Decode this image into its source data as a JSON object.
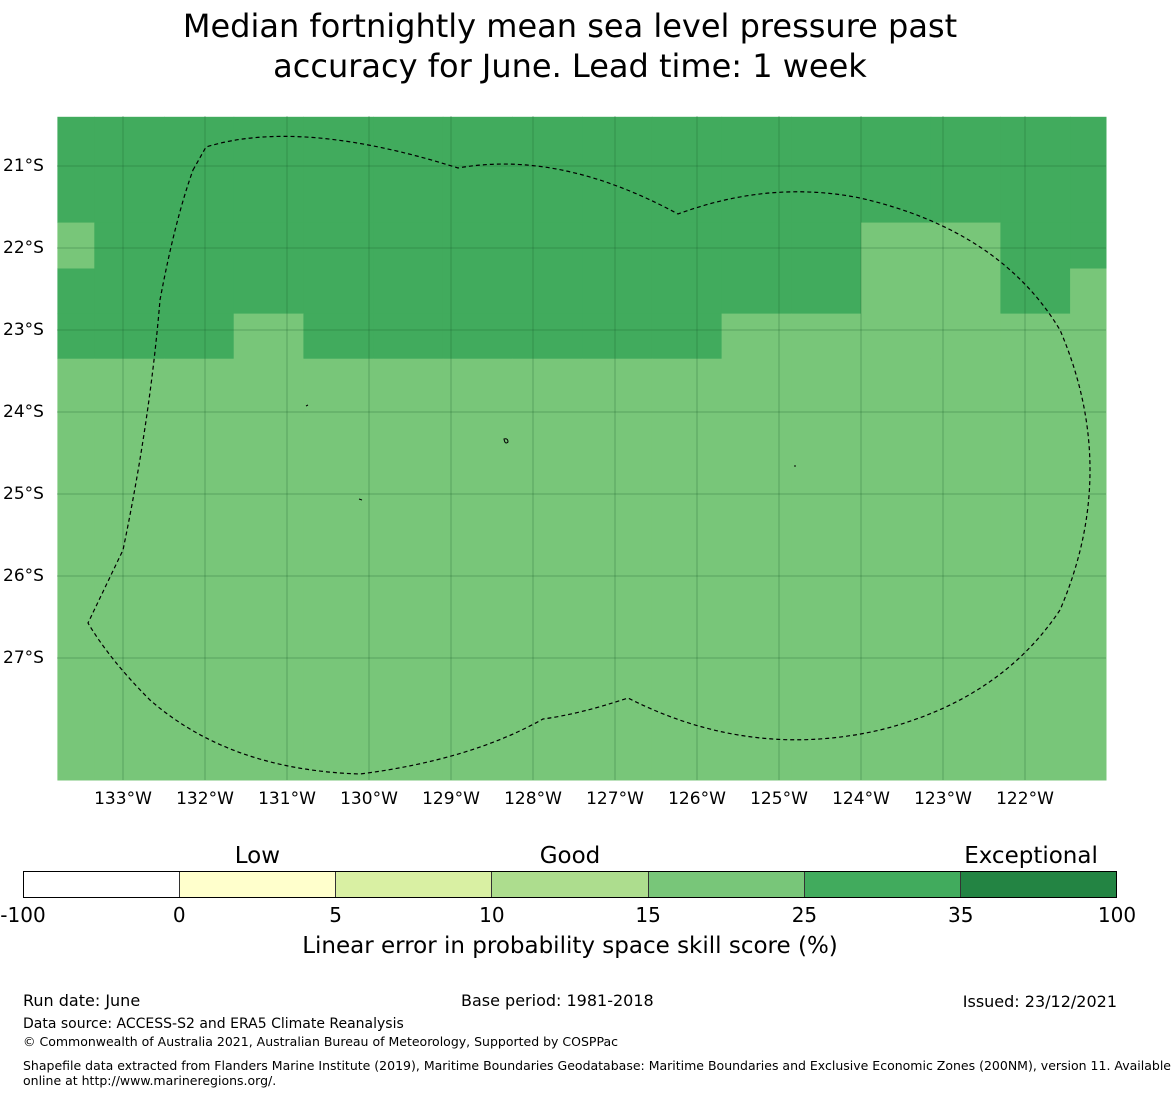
{
  "title": {
    "line1": "Median fortnightly mean sea level pressure past",
    "line2": "accuracy for June. Lead time: 1 week"
  },
  "map": {
    "lat_labels": [
      "21°S",
      "22°S",
      "23°S",
      "24°S",
      "25°S",
      "26°S",
      "27°S"
    ],
    "lon_labels": [
      "133°W",
      "132°W",
      "131°W",
      "130°W",
      "129°W",
      "128°W",
      "127°W",
      "126°W",
      "125°W",
      "124°W",
      "123°W",
      "122°W"
    ],
    "colors": {
      "exceptional_dark": "#238443",
      "range_25_35": "#41ab5d",
      "range_15_25": "#78c679",
      "boundary": "#000000"
    },
    "grid_cells": {
      "lon_edges": [
        -133.8,
        -133.35,
        -132.5,
        -131.65,
        -130.8,
        -129.95,
        -129.1,
        -128.25,
        -127.4,
        -126.55,
        -125.7,
        -124.85,
        -124.0,
        -123.15,
        -122.3,
        -121.45,
        -121.0
      ],
      "lat_rows": [
        {
          "lat_top": -20.4,
          "lat_bottom": -21.69,
          "classes": [
            "25-35",
            "25-35",
            "25-35",
            "25-35",
            "25-35",
            "25-35",
            "25-35",
            "25-35",
            "25-35",
            "25-35",
            "25-35",
            "25-35",
            "25-35",
            "25-35",
            "25-35",
            "25-35"
          ]
        },
        {
          "lat_top": -21.69,
          "lat_bottom": -22.25,
          "classes": [
            "15-25",
            "25-35",
            "25-35",
            "25-35",
            "25-35",
            "25-35",
            "25-35",
            "25-35",
            "25-35",
            "25-35",
            "25-35",
            "25-35",
            "15-25",
            "15-25",
            "25-35",
            "25-35"
          ]
        },
        {
          "lat_top": -22.25,
          "lat_bottom": -22.8,
          "classes": [
            "25-35",
            "25-35",
            "25-35",
            "25-35",
            "25-35",
            "25-35",
            "25-35",
            "25-35",
            "25-35",
            "25-35",
            "25-35",
            "25-35",
            "15-25",
            "15-25",
            "25-35",
            "15-25"
          ]
        },
        {
          "lat_top": -22.8,
          "lat_bottom": -23.35,
          "classes": [
            "25-35",
            "25-35",
            "25-35",
            "15-25",
            "25-35",
            "25-35",
            "25-35",
            "25-35",
            "25-35",
            "25-35",
            "15-25",
            "15-25",
            "15-25",
            "15-25",
            "15-25",
            "15-25"
          ]
        },
        {
          "lat_top": -23.35,
          "lat_bottom": -28.5,
          "classes": [
            "15-25",
            "15-25",
            "15-25",
            "15-25",
            "15-25",
            "15-25",
            "15-25",
            "15-25",
            "15-25",
            "15-25",
            "15-25",
            "15-25",
            "15-25",
            "15-25",
            "15-25",
            "15-25"
          ]
        }
      ]
    }
  },
  "legend": {
    "categories": [
      "Low",
      "Good",
      "Exceptional"
    ],
    "ticks": [
      "-100",
      "0",
      "5",
      "10",
      "15",
      "25",
      "35",
      "100"
    ],
    "colors": [
      "#ffffff",
      "#ffffcc",
      "#d9f0a3",
      "#addd8e",
      "#78c679",
      "#41ab5d",
      "#238443"
    ],
    "title": "Linear error in probability space skill score (%)"
  },
  "footer": {
    "run_date": "Run date: June",
    "base_period": "Base period: 1981-2018",
    "issued": "Issued: 23/12/2021",
    "data_source": "Data source: ACCESS-S2 and ERA5 Climate Reanalysis",
    "copyright": "© Commonwealth of Australia 2021, Australian Bureau of Meteorology, Supported by COSPPac",
    "shapefile_line1": "Shapefile data extracted from Flanders Marine Institute (2019), Maritime Boundaries Geodatabase: Maritime Boundaries and Exclusive Economic Zones (200NM), version 11. Available",
    "shapefile_line2": "online at http://www.marineregions.org/."
  }
}
